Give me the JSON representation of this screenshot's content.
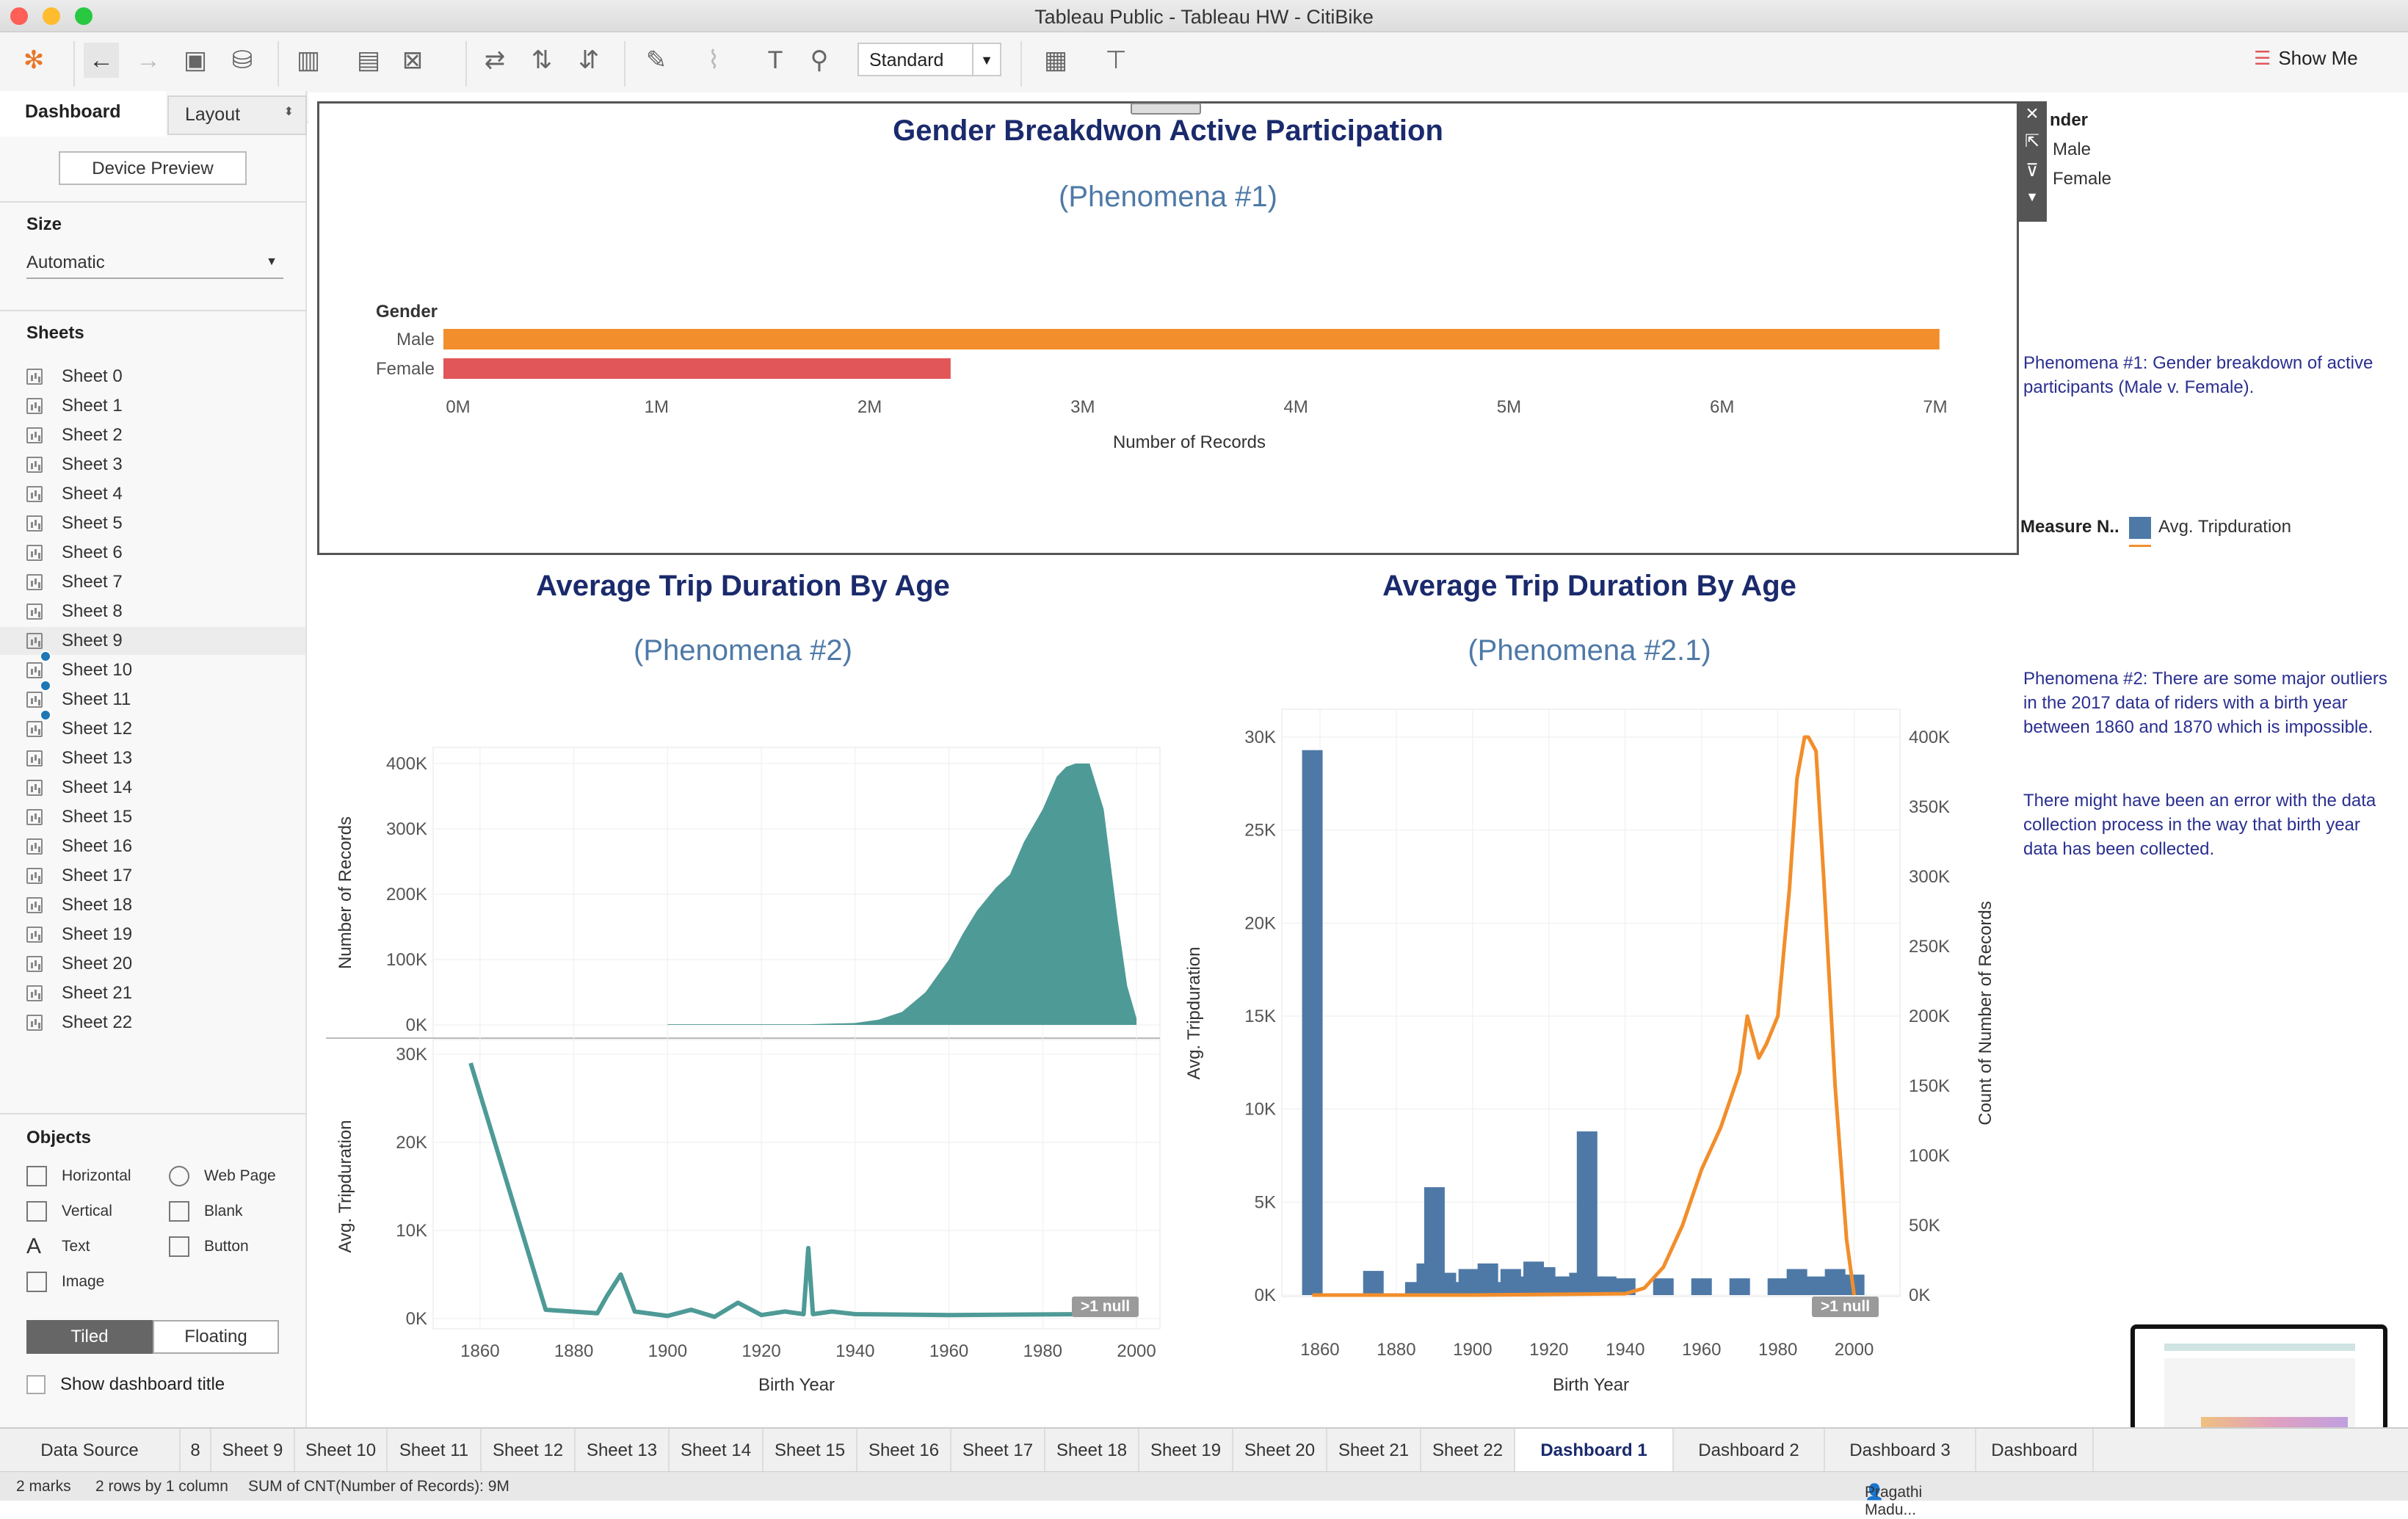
{
  "window": {
    "title": "Tableau Public - Tableau HW - CitiBike"
  },
  "toolbar": {
    "mark_size": "Standard",
    "show_me": "Show Me"
  },
  "sidebar": {
    "tab_dashboard": "Dashboard",
    "tab_layout": "Layout",
    "device_preview": "Device Preview",
    "size_header": "Size",
    "size_value": "Automatic",
    "sheets_header": "Sheets",
    "sheets": [
      "Sheet 0",
      "Sheet 1",
      "Sheet 2",
      "Sheet 3",
      "Sheet 4",
      "Sheet 5",
      "Sheet 6",
      "Sheet 7",
      "Sheet 8",
      "Sheet 9",
      "Sheet 10",
      "Sheet 11",
      "Sheet 12",
      "Sheet 13",
      "Sheet 14",
      "Sheet 15",
      "Sheet 16",
      "Sheet 17",
      "Sheet 18",
      "Sheet 19",
      "Sheet 20",
      "Sheet 21",
      "Sheet 22"
    ],
    "objects_header": "Objects",
    "objects": {
      "horizontal": "Horizontal",
      "web_page": "Web Page",
      "vertical": "Vertical",
      "blank": "Blank",
      "text": "Text",
      "button": "Button",
      "image": "Image"
    },
    "tiled": "Tiled",
    "floating": "Floating",
    "show_title": "Show dashboard title"
  },
  "colors": {
    "male": "#f28e2b",
    "female": "#e15759",
    "teal": "#4e9a96",
    "blue": "#4e79a7",
    "title": "#1a2a6c",
    "subtitle": "#4e79a7",
    "orange": "#f28e2b"
  },
  "chart1": {
    "title": "Gender Breakdwon Active Participation",
    "subtitle": "(Phenomena #1)",
    "dim_label": "Gender",
    "xlabel": "Number of Records",
    "ticks": [
      "0M",
      "1M",
      "2M",
      "3M",
      "4M",
      "5M",
      "6M",
      "7M"
    ]
  },
  "legend": {
    "gender_title": "nder",
    "male": "Male",
    "female": "Female",
    "measure_title": "Measure N..",
    "measure_item": "Avg. Tripduration"
  },
  "chart2": {
    "title": "Average Trip Duration By Age",
    "subtitle": "(Phenomena #2)",
    "ylabel_top": "Number of Records",
    "ylabel_bottom": "Avg. Tripduration",
    "xlabel": "Birth Year",
    "null_badge": ">1 null",
    "yticks_top": [
      "400K",
      "300K",
      "200K",
      "100K",
      "0K"
    ],
    "yticks_bottom": [
      "30K",
      "20K",
      "10K",
      "0K"
    ],
    "xticks": [
      "1860",
      "1880",
      "1900",
      "1920",
      "1940",
      "1960",
      "1980",
      "2000"
    ]
  },
  "chart3": {
    "title": "Average Trip Duration By Age",
    "subtitle": "(Phenomena #2.1)",
    "ylabel_left": "Avg. Tripduration",
    "ylabel_right": "Count of Number of Records",
    "xlabel": "Birth Year",
    "null_badge": ">1 null",
    "yticks_left": [
      "30K",
      "25K",
      "20K",
      "15K",
      "10K",
      "5K",
      "0K"
    ],
    "yticks_right": [
      "400K",
      "350K",
      "300K",
      "250K",
      "200K",
      "150K",
      "100K",
      "50K",
      "0K"
    ],
    "xticks": [
      "1860",
      "1880",
      "1900",
      "1920",
      "1940",
      "1960",
      "1980",
      "2000"
    ]
  },
  "notes": {
    "n1": "Phenomena #1: Gender breakdown of active participants (Male v. Female).",
    "n2a": "Phenomena #2: There are some major outliers in the 2017 data of riders with a birth year between 1860 and 1870 which is impossible.",
    "n2b": "There might have been an error with the data collection process in the way that birth year data has been collected."
  },
  "bottom_tabs": [
    "Data Source",
    "8",
    "Sheet 9",
    "Sheet 10",
    "Sheet 11",
    "Sheet 12",
    "Sheet 13",
    "Sheet 14",
    "Sheet 15",
    "Sheet 16",
    "Sheet 17",
    "Sheet 18",
    "Sheet 19",
    "Sheet 20",
    "Sheet 21",
    "Sheet 22",
    "Dashboard 1",
    "Dashboard 2",
    "Dashboard 3",
    "Dashboard"
  ],
  "status": {
    "marks": "2 marks",
    "rows": "2 rows by 1 column",
    "sum": "SUM of CNT(Number of Records): 9M",
    "user": "Pragathi Madu..."
  },
  "chart_data": [
    {
      "type": "bar",
      "title": "Gender Breakdwon Active Participation",
      "xlabel": "Number of Records",
      "ylabel": "Gender",
      "categories": [
        "Male",
        "Female"
      ],
      "values": [
        7020000,
        2380000
      ],
      "xlim": [
        0,
        7000000
      ]
    },
    {
      "type": "area",
      "title": "Average Trip Duration By Age",
      "xlabel": "Birth Year",
      "ylabel": "Number of Records",
      "x": [
        1900,
        1930,
        1940,
        1945,
        1950,
        1955,
        1960,
        1963,
        1966,
        1970,
        1973,
        1976,
        1980,
        1983,
        1985,
        1987,
        1990,
        1993,
        1996,
        1998,
        2000
      ],
      "values": [
        1000,
        1000,
        3000,
        8000,
        20000,
        50000,
        100000,
        140000,
        175000,
        210000,
        230000,
        280000,
        330000,
        380000,
        395000,
        400000,
        400000,
        330000,
        160000,
        60000,
        10000
      ],
      "ylim": [
        0,
        400000
      ]
    },
    {
      "type": "line",
      "xlabel": "Birth Year",
      "ylabel": "Avg. Tripduration",
      "x": [
        1858,
        1874,
        1885,
        1887,
        1890,
        1893,
        1900,
        1905,
        1910,
        1915,
        1920,
        1925,
        1929,
        1930,
        1931,
        1935,
        1940,
        1960,
        1990,
        1995,
        1999
      ],
      "values": [
        29000,
        1000,
        600,
        2500,
        5000,
        800,
        300,
        1000,
        200,
        1800,
        400,
        800,
        500,
        8000,
        500,
        800,
        500,
        400,
        500,
        1000,
        600
      ],
      "ylim": [
        0,
        30000
      ]
    },
    {
      "type": "bar",
      "title": "Average Trip Duration By Age",
      "xlabel": "Birth Year",
      "ylabel": "Avg. Tripduration",
      "x": [
        1858,
        1874,
        1885,
        1888,
        1890,
        1893,
        1896,
        1899,
        1901,
        1904,
        1907,
        1910,
        1913,
        1916,
        1919,
        1922,
        1925,
        1928,
        1930,
        1932,
        1935,
        1940,
        1950,
        1960,
        1970,
        1980,
        1985,
        1990,
        1995,
        2000
      ],
      "values": [
        29300,
        1300,
        700,
        1700,
        5800,
        1200,
        700,
        1400,
        900,
        1700,
        700,
        1400,
        1000,
        1800,
        1500,
        1000,
        1000,
        1200,
        8800,
        1000,
        1000,
        900,
        900,
        900,
        900,
        900,
        1400,
        1000,
        1400,
        1100
      ],
      "ylim": [
        0,
        30000
      ]
    },
    {
      "type": "line",
      "ylabel": "Count of Number of Records",
      "x": [
        1858,
        1900,
        1940,
        1945,
        1950,
        1955,
        1960,
        1965,
        1970,
        1972,
        1975,
        1977,
        1980,
        1983,
        1985,
        1987,
        1988,
        1990,
        1992,
        1995,
        1998,
        2000
      ],
      "values": [
        0,
        0,
        1000,
        5000,
        20000,
        50000,
        90000,
        120000,
        160000,
        200000,
        170000,
        180000,
        200000,
        290000,
        370000,
        400000,
        400000,
        390000,
        300000,
        150000,
        40000,
        0
      ],
      "ylim": [
        0,
        400000
      ]
    }
  ]
}
